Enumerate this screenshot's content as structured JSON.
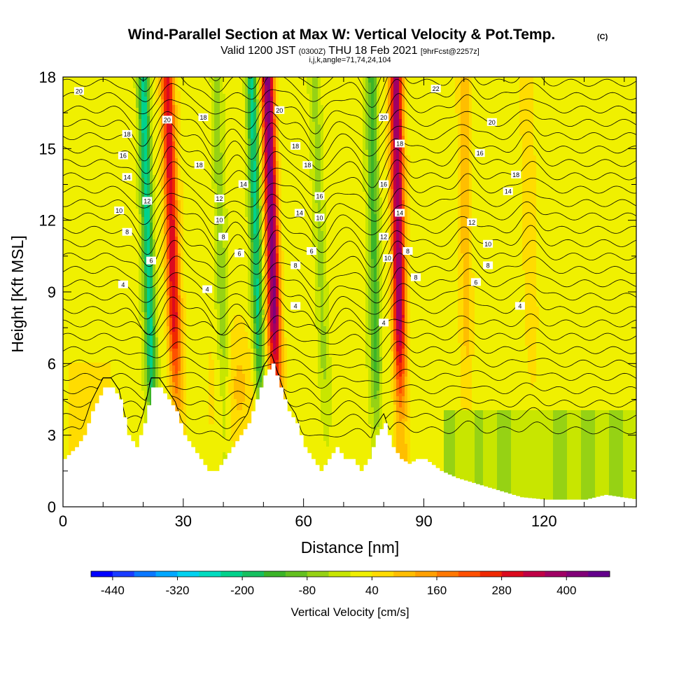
{
  "chart_data": {
    "type": "heatmap",
    "title": "Wind-Parallel Section at Max W: Vertical Velocity & Pot.Temp.",
    "title_suffix": "(C)",
    "subtitle_parts": [
      "Valid 1200 JST ",
      "(0300Z)",
      " THU 18 Feb 2021 ",
      "[9hrFcst@2257z]"
    ],
    "subtitle2": "i,j,k,angle=71,74,24,104",
    "xlabel": "Distance [nm]",
    "ylabel": "Height [Kft MSL]",
    "xlim": [
      0,
      143
    ],
    "ylim": [
      0,
      18
    ],
    "x_ticks": [
      0,
      30,
      60,
      90,
      120
    ],
    "y_ticks": [
      0,
      3,
      6,
      9,
      12,
      15,
      18
    ],
    "colorbar": {
      "label": "Vertical Velocity [cm/s]",
      "tick_labels": [
        "-440",
        "-320",
        "-200",
        "-80",
        "40",
        "160",
        "280",
        "400"
      ],
      "colors": [
        "#0000ff",
        "#1a3cff",
        "#0a78ff",
        "#00a8ff",
        "#00d2f0",
        "#00dcc0",
        "#00d28c",
        "#16c060",
        "#3cb428",
        "#64c020",
        "#96d214",
        "#c8e600",
        "#f0f000",
        "#ffdc00",
        "#ffbe00",
        "#ffa000",
        "#ff7800",
        "#ff5000",
        "#f02800",
        "#dc0a1e",
        "#c00046",
        "#a00064",
        "#820078",
        "#64008c"
      ]
    },
    "ascent_bands": [
      {
        "x": 28,
        "peak": 300
      },
      {
        "x": 53,
        "peak": 400
      },
      {
        "x": 84,
        "peak": 380
      },
      {
        "x": 101,
        "peak": 80
      },
      {
        "x": 117,
        "peak": 60
      }
    ],
    "descent_bands": [
      {
        "x": 22,
        "peak": -240
      },
      {
        "x": 49,
        "peak": -220
      },
      {
        "x": 78,
        "peak": -160
      },
      {
        "x": 65,
        "peak": -80
      },
      {
        "x": 40,
        "peak": -80
      }
    ],
    "terrain": {
      "x": [
        0,
        3,
        5,
        7,
        10,
        12,
        14,
        16,
        18,
        20,
        22,
        24,
        26,
        28,
        30,
        32,
        34,
        36,
        38,
        40,
        42,
        44,
        46,
        48,
        50,
        52,
        54,
        56,
        58,
        60,
        62,
        64,
        66,
        68,
        70,
        72,
        74,
        76,
        78,
        80,
        82,
        84,
        86,
        88,
        90,
        94,
        98,
        102,
        106,
        110,
        114,
        120,
        126,
        130,
        135,
        143
      ],
      "height_kft": [
        2,
        2.5,
        3,
        4,
        5,
        5,
        4.5,
        3,
        2.5,
        3.5,
        5,
        5,
        4.5,
        4,
        3,
        2.5,
        2,
        1.5,
        1.5,
        2,
        2.5,
        3,
        3.5,
        4.5,
        5.5,
        6,
        5,
        4,
        3.5,
        2.5,
        2,
        1.5,
        2,
        2.5,
        2,
        2,
        1.5,
        2,
        3,
        3.5,
        2.5,
        2,
        1.8,
        2,
        2,
        1.5,
        1.2,
        1,
        0.8,
        0.6,
        0.4,
        0.3,
        0.3,
        0.3,
        0.5,
        0.3
      ]
    },
    "theta_contours_C": [
      4,
      6,
      8,
      10,
      12,
      14,
      16,
      18,
      20
    ],
    "contour_labels": [
      {
        "v": "20",
        "x": 4,
        "y": 17.4
      },
      {
        "v": "18",
        "x": 16,
        "y": 15.6
      },
      {
        "v": "16",
        "x": 15,
        "y": 14.7
      },
      {
        "v": "14",
        "x": 16,
        "y": 13.8
      },
      {
        "v": "10",
        "x": 14,
        "y": 12.4
      },
      {
        "v": "8",
        "x": 16,
        "y": 11.5
      },
      {
        "v": "4",
        "x": 15,
        "y": 9.3
      },
      {
        "v": "20",
        "x": 26,
        "y": 16.2
      },
      {
        "v": "12",
        "x": 21,
        "y": 12.8
      },
      {
        "v": "6",
        "x": 22,
        "y": 10.3
      },
      {
        "v": "18",
        "x": 35,
        "y": 16.3
      },
      {
        "v": "18",
        "x": 34,
        "y": 14.3
      },
      {
        "v": "12",
        "x": 39,
        "y": 12.9
      },
      {
        "v": "10",
        "x": 39,
        "y": 12
      },
      {
        "v": "8",
        "x": 40,
        "y": 11.3
      },
      {
        "v": "6",
        "x": 44,
        "y": 10.6
      },
      {
        "v": "4",
        "x": 36,
        "y": 9.1
      },
      {
        "v": "14",
        "x": 45,
        "y": 13.5
      },
      {
        "v": "20",
        "x": 54,
        "y": 16.6
      },
      {
        "v": "18",
        "x": 58,
        "y": 15.1
      },
      {
        "v": "18",
        "x": 61,
        "y": 14.3
      },
      {
        "v": "16",
        "x": 64,
        "y": 13
      },
      {
        "v": "14",
        "x": 59,
        "y": 12.3
      },
      {
        "v": "10",
        "x": 64,
        "y": 12.1
      },
      {
        "v": "8",
        "x": 58,
        "y": 10.1
      },
      {
        "v": "6",
        "x": 62,
        "y": 10.7
      },
      {
        "v": "4",
        "x": 58,
        "y": 8.4
      },
      {
        "v": "20",
        "x": 80,
        "y": 16.3
      },
      {
        "v": "18",
        "x": 84,
        "y": 15.2
      },
      {
        "v": "16",
        "x": 80,
        "y": 13.5
      },
      {
        "v": "14",
        "x": 84,
        "y": 12.3
      },
      {
        "v": "12",
        "x": 80,
        "y": 11.3
      },
      {
        "v": "10",
        "x": 81,
        "y": 10.4
      },
      {
        "v": "8",
        "x": 86,
        "y": 10.7
      },
      {
        "v": "8",
        "x": 88,
        "y": 9.6
      },
      {
        "v": "4",
        "x": 80,
        "y": 7.7
      },
      {
        "v": "22",
        "x": 93,
        "y": 17.5
      },
      {
        "v": "20",
        "x": 107,
        "y": 16.1
      },
      {
        "v": "16",
        "x": 104,
        "y": 14.8
      },
      {
        "v": "18",
        "x": 113,
        "y": 13.9
      },
      {
        "v": "14",
        "x": 111,
        "y": 13.2
      },
      {
        "v": "12",
        "x": 102,
        "y": 11.9
      },
      {
        "v": "10",
        "x": 106,
        "y": 11
      },
      {
        "v": "8",
        "x": 106,
        "y": 10.1
      },
      {
        "v": "6",
        "x": 103,
        "y": 9.4
      },
      {
        "v": "4",
        "x": 114,
        "y": 8.4
      }
    ]
  }
}
